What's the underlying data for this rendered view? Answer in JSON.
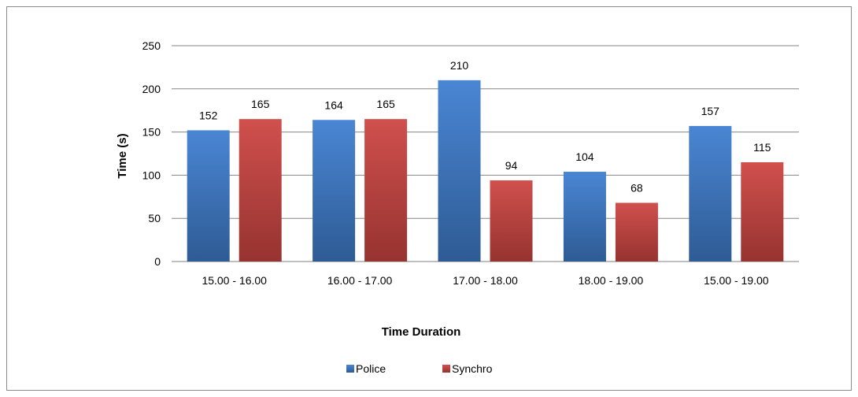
{
  "chart_data": {
    "type": "bar",
    "categories": [
      "15.00 - 16.00",
      "16.00 - 17.00",
      "17.00 - 18.00",
      "18.00 - 19.00",
      "15.00 - 19.00"
    ],
    "series": [
      {
        "name": "Police",
        "values": [
          152,
          164,
          210,
          104,
          157
        ],
        "color": "#4a7ebb"
      },
      {
        "name": "Synchro",
        "values": [
          165,
          165,
          94,
          68,
          115
        ],
        "color": "#be4b48"
      }
    ],
    "title": "",
    "xlabel": "Time Duration",
    "ylabel": "Time (s)",
    "ylim": [
      0,
      250
    ],
    "yticks": [
      "0",
      "50",
      "100",
      "150",
      "200",
      "250"
    ],
    "grid": true,
    "legend": "bottom",
    "data_labels": true
  }
}
